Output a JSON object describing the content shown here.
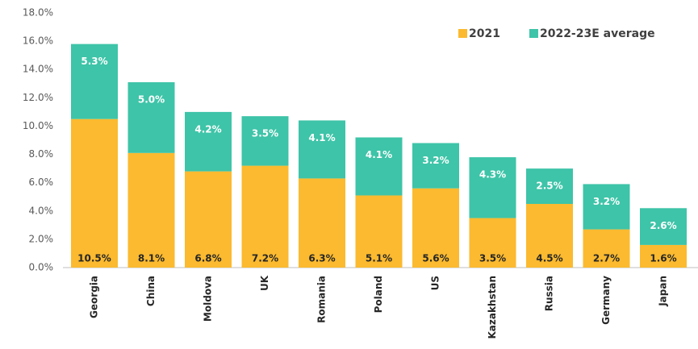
{
  "chart_data": {
    "type": "stacked_bar",
    "categories": [
      "Georgia",
      "China",
      "Moldova",
      "UK",
      "Romania",
      "Poland",
      "US",
      "Kazakhstan",
      "Russia",
      "Germany",
      "Japan"
    ],
    "series": [
      {
        "name": "2021",
        "color": "#fbba2f",
        "values": [
          10.5,
          8.1,
          6.8,
          7.2,
          6.3,
          5.1,
          5.6,
          3.5,
          4.5,
          2.7,
          1.6
        ],
        "value_labels": [
          "10.5%",
          "8.1%",
          "6.8%",
          "7.2%",
          "6.3%",
          "5.1%",
          "5.6%",
          "3.5%",
          "4.5%",
          "2.7%",
          "1.6%"
        ]
      },
      {
        "name": "2022-23E average",
        "color": "#3ec4a8",
        "values": [
          5.3,
          5.0,
          4.2,
          3.5,
          4.1,
          4.1,
          3.2,
          4.3,
          2.5,
          3.2,
          2.6
        ],
        "value_labels": [
          "5.3%",
          "5.0%",
          "4.2%",
          "3.5%",
          "4.1%",
          "4.1%",
          "3.2%",
          "4.3%",
          "2.5%",
          "3.2%",
          "2.6%"
        ]
      }
    ],
    "ylim": [
      0,
      18
    ],
    "yticks": [
      {
        "value": 0,
        "label": "0.0%"
      },
      {
        "value": 2,
        "label": "2.0%"
      },
      {
        "value": 4,
        "label": "4.0%"
      },
      {
        "value": 6,
        "label": "6.0%"
      },
      {
        "value": 8,
        "label": "8.0%"
      },
      {
        "value": 10,
        "label": "10.0%"
      },
      {
        "value": 12,
        "label": "12.0%"
      },
      {
        "value": 14,
        "label": "14.0%"
      },
      {
        "value": 16,
        "label": "16.0%"
      },
      {
        "value": 18,
        "label": "18.0%"
      }
    ],
    "legend": "top-right",
    "grid": false
  }
}
